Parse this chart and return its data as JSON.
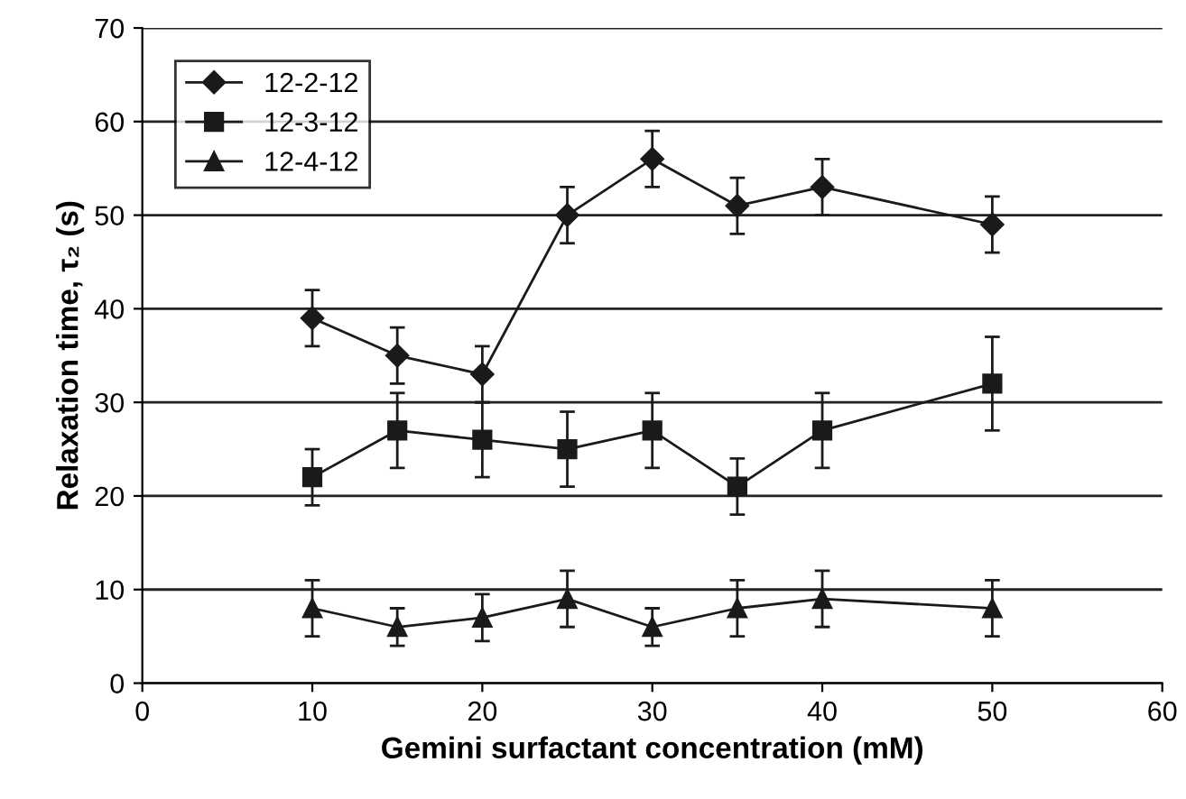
{
  "chart_data": {
    "type": "line",
    "xlabel": "Gemini surfactant concentration (mM)",
    "ylabel": "Relaxation time, τ₂ (s)",
    "x": [
      10,
      15,
      20,
      25,
      30,
      35,
      40,
      50
    ],
    "series": [
      {
        "name": "12-2-12",
        "color": "#1a1a1a",
        "marker": "diamond",
        "values": [
          39,
          35,
          33,
          50,
          56,
          51,
          53,
          49
        ],
        "errors": [
          3,
          3,
          3,
          3,
          3,
          3,
          3,
          3
        ]
      },
      {
        "name": "12-3-12",
        "color": "#1a1a1a",
        "marker": "square",
        "values": [
          22,
          27,
          26,
          25,
          27,
          21,
          27,
          32
        ],
        "errors": [
          3,
          4,
          4,
          4,
          4,
          3,
          4,
          5
        ]
      },
      {
        "name": "12-4-12",
        "color": "#1a1a1a",
        "marker": "triangle",
        "values": [
          8,
          6,
          7,
          9,
          6,
          8,
          9,
          8
        ],
        "errors": [
          3,
          2,
          2.5,
          3,
          2,
          3,
          3,
          3
        ]
      }
    ],
    "xlim": [
      0,
      60
    ],
    "xticks": [
      0,
      10,
      20,
      30,
      40,
      50,
      60
    ],
    "ylim": [
      0,
      70
    ],
    "yticks": [
      0,
      10,
      20,
      30,
      40,
      50,
      60,
      70
    ],
    "grid": "y",
    "legend": "top left",
    "line_style": "solid"
  }
}
